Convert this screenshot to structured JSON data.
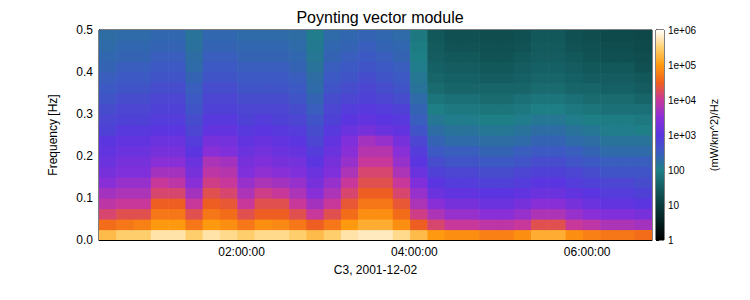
{
  "chart_data": {
    "type": "heatmap",
    "title": "Poynting vector module",
    "xlabel": "C3, 2001-12-02",
    "ylabel": "Frequency [Hz]",
    "xlim": [
      0.35,
      6.75
    ],
    "ylim": [
      0,
      0.5
    ],
    "xticks": [
      {
        "value": 2,
        "label": "02:00:00"
      },
      {
        "value": 4,
        "label": "04:00:00"
      },
      {
        "value": 6,
        "label": "06:00:00"
      }
    ],
    "yticks": [
      {
        "value": 0,
        "label": "0.0"
      },
      0.1,
      0.2,
      0.3,
      0.4,
      0.5
    ],
    "x_bins": [
      0.35,
      0.55,
      0.75,
      0.95,
      1.15,
      1.35,
      1.55,
      1.75,
      1.95,
      2.15,
      2.35,
      2.55,
      2.75,
      2.95,
      3.15,
      3.35,
      3.55,
      3.75,
      3.95,
      4.15,
      4.35,
      4.55,
      4.75,
      4.95,
      5.15,
      5.35,
      5.55,
      5.75,
      5.95,
      6.15,
      6.35,
      6.55,
      6.75
    ],
    "y_bins": [
      0,
      0.025,
      0.05,
      0.075,
      0.1,
      0.125,
      0.15,
      0.175,
      0.2,
      0.225,
      0.25,
      0.275,
      0.3,
      0.325,
      0.35,
      0.375,
      0.4,
      0.425,
      0.45,
      0.475,
      0.5
    ],
    "values": [
      [
        200000,
        300000,
        300000,
        500000,
        500000,
        300000,
        500000,
        400000,
        300000,
        400000,
        400000,
        300000,
        200000,
        300000,
        500000,
        600000,
        600000,
        400000,
        200000,
        100000,
        80000,
        80000,
        60000,
        60000,
        80000,
        150000,
        150000,
        80000,
        60000,
        50000,
        50000,
        40000
      ],
      [
        40000,
        50000,
        60000,
        100000,
        100000,
        50000,
        100000,
        80000,
        50000,
        80000,
        70000,
        50000,
        30000,
        50000,
        100000,
        150000,
        150000,
        80000,
        30000,
        15000,
        10000,
        10000,
        8000,
        8000,
        10000,
        20000,
        20000,
        10000,
        8000,
        6000,
        6000,
        5000
      ],
      [
        15000,
        20000,
        20000,
        50000,
        50000,
        20000,
        50000,
        40000,
        20000,
        30000,
        30000,
        20000,
        10000,
        20000,
        40000,
        80000,
        80000,
        40000,
        12000,
        6000,
        4000,
        4000,
        3000,
        3000,
        4000,
        6000,
        6000,
        4000,
        3000,
        2500,
        2500,
        2000
      ],
      [
        8000,
        10000,
        10000,
        30000,
        30000,
        10000,
        30000,
        25000,
        10000,
        20000,
        20000,
        10000,
        5000,
        10000,
        25000,
        50000,
        50000,
        25000,
        6000,
        3000,
        2000,
        2000,
        1500,
        1500,
        2000,
        3000,
        3000,
        2000,
        1500,
        1200,
        1200,
        1000
      ],
      [
        5000,
        6000,
        6000,
        15000,
        15000,
        5000,
        20000,
        15000,
        6000,
        12000,
        10000,
        6000,
        3000,
        6000,
        15000,
        30000,
        30000,
        15000,
        4000,
        1500,
        1200,
        1200,
        1000,
        1000,
        1200,
        1500,
        1500,
        1200,
        1000,
        800,
        800,
        700
      ],
      [
        3000,
        4000,
        4000,
        10000,
        8000,
        3000,
        12000,
        10000,
        4000,
        6000,
        5000,
        4000,
        2000,
        4000,
        10000,
        20000,
        20000,
        10000,
        2500,
        1000,
        800,
        800,
        700,
        700,
        800,
        1000,
        1000,
        800,
        700,
        600,
        600,
        500
      ],
      [
        2000,
        2500,
        2500,
        5000,
        5000,
        2000,
        8000,
        7000,
        2500,
        3500,
        3000,
        2500,
        1500,
        2500,
        6000,
        15000,
        15000,
        6000,
        1500,
        700,
        600,
        600,
        500,
        500,
        600,
        700,
        700,
        600,
        500,
        400,
        400,
        400
      ],
      [
        1500,
        2000,
        2000,
        3000,
        3000,
        1500,
        6000,
        5000,
        2000,
        2500,
        2000,
        1800,
        1000,
        2000,
        4000,
        10000,
        10000,
        4000,
        1000,
        500,
        400,
        400,
        350,
        350,
        400,
        500,
        500,
        400,
        350,
        300,
        300,
        300
      ],
      [
        1200,
        1500,
        1500,
        2000,
        2000,
        1000,
        3000,
        2500,
        1500,
        1800,
        1500,
        1300,
        800,
        1500,
        3000,
        7000,
        7000,
        3000,
        800,
        350,
        300,
        300,
        250,
        250,
        300,
        350,
        350,
        300,
        250,
        200,
        200,
        200
      ],
      [
        1000,
        1200,
        1200,
        1500,
        1500,
        800,
        2000,
        1800,
        1200,
        1400,
        1200,
        1000,
        600,
        1200,
        2500,
        5000,
        4000,
        2000,
        600,
        250,
        200,
        200,
        180,
        180,
        200,
        250,
        250,
        200,
        180,
        150,
        150,
        150
      ],
      [
        700,
        900,
        900,
        1000,
        1000,
        600,
        1200,
        1200,
        900,
        1000,
        900,
        800,
        500,
        900,
        1500,
        2000,
        1500,
        1200,
        400,
        180,
        150,
        150,
        130,
        130,
        150,
        180,
        180,
        150,
        130,
        110,
        110,
        100
      ],
      [
        600,
        700,
        700,
        800,
        800,
        500,
        900,
        900,
        700,
        800,
        700,
        600,
        400,
        700,
        1000,
        1200,
        1000,
        900,
        300,
        130,
        110,
        110,
        100,
        100,
        110,
        130,
        130,
        110,
        100,
        90,
        90,
        80
      ],
      [
        500,
        600,
        600,
        700,
        700,
        400,
        700,
        700,
        600,
        600,
        600,
        500,
        300,
        600,
        800,
        900,
        800,
        700,
        250,
        100,
        80,
        80,
        70,
        70,
        80,
        100,
        100,
        80,
        70,
        60,
        60,
        60
      ],
      [
        400,
        500,
        500,
        600,
        600,
        350,
        600,
        600,
        500,
        500,
        500,
        400,
        250,
        500,
        600,
        700,
        600,
        500,
        200,
        70,
        60,
        60,
        50,
        50,
        60,
        70,
        70,
        60,
        50,
        50,
        50,
        40
      ],
      [
        350,
        400,
        400,
        500,
        500,
        300,
        500,
        500,
        400,
        400,
        400,
        350,
        200,
        400,
        500,
        600,
        500,
        400,
        150,
        50,
        40,
        40,
        40,
        40,
        40,
        50,
        50,
        40,
        40,
        35,
        35,
        30
      ],
      [
        300,
        350,
        350,
        400,
        400,
        250,
        400,
        400,
        350,
        350,
        350,
        300,
        180,
        350,
        400,
        500,
        400,
        350,
        130,
        40,
        35,
        35,
        30,
        30,
        35,
        40,
        40,
        35,
        30,
        30,
        30,
        25
      ],
      [
        250,
        300,
        300,
        350,
        350,
        200,
        350,
        350,
        300,
        300,
        300,
        250,
        150,
        300,
        350,
        400,
        350,
        300,
        110,
        35,
        30,
        30,
        25,
        25,
        30,
        35,
        35,
        30,
        25,
        25,
        25,
        20
      ],
      [
        220,
        250,
        250,
        300,
        300,
        180,
        300,
        300,
        250,
        250,
        250,
        220,
        130,
        250,
        300,
        350,
        300,
        250,
        100,
        30,
        25,
        25,
        22,
        22,
        25,
        30,
        30,
        25,
        22,
        20,
        20,
        18
      ],
      [
        200,
        220,
        220,
        250,
        250,
        160,
        250,
        250,
        220,
        220,
        220,
        200,
        120,
        220,
        250,
        300,
        250,
        220,
        90,
        28,
        22,
        22,
        20,
        20,
        22,
        28,
        28,
        22,
        20,
        18,
        18,
        16
      ],
      [
        180,
        200,
        200,
        220,
        220,
        150,
        220,
        220,
        200,
        200,
        200,
        180,
        110,
        200,
        220,
        250,
        220,
        200,
        80,
        25,
        20,
        20,
        18,
        18,
        20,
        25,
        25,
        20,
        18,
        16,
        16,
        15
      ]
    ],
    "colorbar": {
      "label": "(mW/km^2)/Hz",
      "lim": [
        1,
        1000000
      ],
      "ticks": [
        1,
        10,
        100,
        {
          "value": 1000,
          "label": "1e+03"
        },
        {
          "value": 10000,
          "label": "1e+04"
        },
        {
          "value": 100000,
          "label": "1e+05"
        },
        {
          "value": 1000000,
          "label": "1e+06"
        }
      ]
    }
  }
}
